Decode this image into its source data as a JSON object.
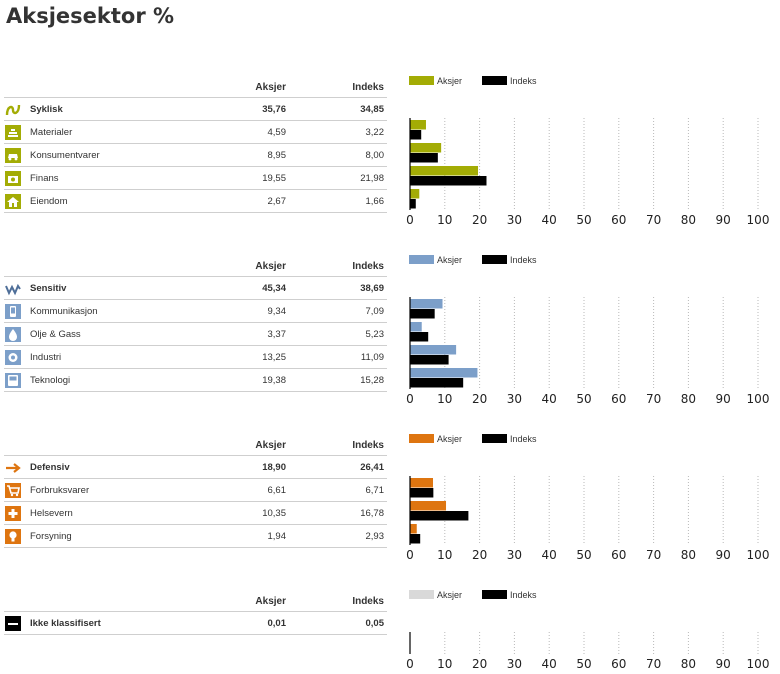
{
  "page": {
    "title": "Aksjesektor %"
  },
  "colors": {
    "index": "#000000",
    "gridline": "#b9b9b9"
  },
  "chart_data": [
    {
      "type": "bar",
      "orientation": "horizontal",
      "group": "Syklisk",
      "icon": "cyclical-icon",
      "accent": "#a3ac05",
      "columns": [
        "Aksjer",
        "Indeks"
      ],
      "total": {
        "label": "Syklisk",
        "aksjer": "35,76",
        "indeks": "34,85"
      },
      "categories": [
        "Materialer",
        "Konsumentvarer",
        "Finans",
        "Eiendom"
      ],
      "icons": [
        "materials-icon",
        "consumer-cyclical-icon",
        "finance-icon",
        "real-estate-icon"
      ],
      "display": {
        "aksjer": [
          "4,59",
          "8,95",
          "19,55",
          "2,67"
        ],
        "indeks": [
          "3,22",
          "8,00",
          "21,98",
          "1,66"
        ]
      },
      "series": [
        {
          "name": "Aksjer",
          "values": [
            4.59,
            8.95,
            19.55,
            2.67
          ]
        },
        {
          "name": "Indeks",
          "values": [
            3.22,
            8.0,
            21.98,
            1.66
          ]
        }
      ],
      "xlim": [
        0,
        100
      ],
      "xticks": [
        0,
        10,
        20,
        30,
        40,
        50,
        60,
        70,
        80,
        90,
        100
      ],
      "grid": true,
      "legend": "top-left"
    },
    {
      "type": "bar",
      "orientation": "horizontal",
      "group": "Sensitiv",
      "icon": "sensitive-icon",
      "accent": "#7c9fc9",
      "columns": [
        "Aksjer",
        "Indeks"
      ],
      "total": {
        "label": "Sensitiv",
        "aksjer": "45,34",
        "indeks": "38,69"
      },
      "categories": [
        "Kommunikasjon",
        "Olje & Gass",
        "Industri",
        "Teknologi"
      ],
      "icons": [
        "communication-icon",
        "oil-gas-icon",
        "industry-icon",
        "technology-icon"
      ],
      "display": {
        "aksjer": [
          "9,34",
          "3,37",
          "13,25",
          "19,38"
        ],
        "indeks": [
          "7,09",
          "5,23",
          "11,09",
          "15,28"
        ]
      },
      "series": [
        {
          "name": "Aksjer",
          "values": [
            9.34,
            3.37,
            13.25,
            19.38
          ]
        },
        {
          "name": "Indeks",
          "values": [
            7.09,
            5.23,
            11.09,
            15.28
          ]
        }
      ],
      "xlim": [
        0,
        100
      ],
      "xticks": [
        0,
        10,
        20,
        30,
        40,
        50,
        60,
        70,
        80,
        90,
        100
      ],
      "grid": true,
      "legend": "top-left"
    },
    {
      "type": "bar",
      "orientation": "horizontal",
      "group": "Defensiv",
      "icon": "defensive-icon",
      "accent": "#de7510",
      "columns": [
        "Aksjer",
        "Indeks"
      ],
      "total": {
        "label": "Defensiv",
        "aksjer": "18,90",
        "indeks": "26,41"
      },
      "categories": [
        "Forbruksvarer",
        "Helsevern",
        "Forsyning"
      ],
      "icons": [
        "consumer-defensive-icon",
        "healthcare-icon",
        "utilities-icon"
      ],
      "display": {
        "aksjer": [
          "6,61",
          "10,35",
          "1,94"
        ],
        "indeks": [
          "6,71",
          "16,78",
          "2,93"
        ]
      },
      "series": [
        {
          "name": "Aksjer",
          "values": [
            6.61,
            10.35,
            1.94
          ]
        },
        {
          "name": "Indeks",
          "values": [
            6.71,
            16.78,
            2.93
          ]
        }
      ],
      "xlim": [
        0,
        100
      ],
      "xticks": [
        0,
        10,
        20,
        30,
        40,
        50,
        60,
        70,
        80,
        90,
        100
      ],
      "grid": true,
      "legend": "top-left"
    },
    {
      "type": "bar",
      "orientation": "horizontal",
      "group": "Ikke klassifisert",
      "icon": "unclassified-icon",
      "accent": "#d9d9d9",
      "columns": [
        "Aksjer",
        "Indeks"
      ],
      "total": {
        "label": "Ikke klassifisert",
        "aksjer": "0,01",
        "indeks": "0,05"
      },
      "categories": [],
      "icons": [],
      "display": {
        "aksjer": [],
        "indeks": []
      },
      "series": [
        {
          "name": "Aksjer",
          "values": []
        },
        {
          "name": "Indeks",
          "values": []
        }
      ],
      "xlim": [
        0,
        100
      ],
      "xticks": [
        0,
        10,
        20,
        30,
        40,
        50,
        60,
        70,
        80,
        90,
        100
      ],
      "grid": true,
      "legend": "top-left"
    }
  ]
}
